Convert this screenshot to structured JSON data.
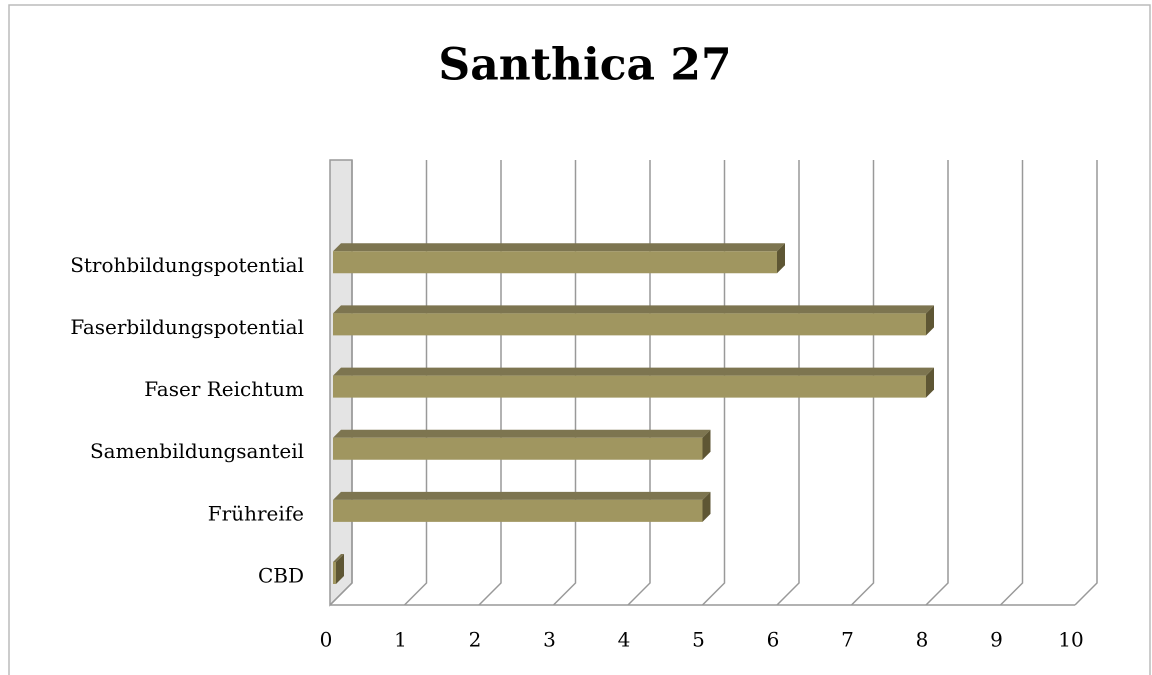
{
  "chart_data": {
    "type": "bar3d_horizontal",
    "title": "Santhica 27",
    "categories": [
      "CBD",
      "Frühreife",
      "Samenbildungsanteil",
      "Faser Reichtum",
      "Faserbildungspotential",
      "Strohbildungspotential",
      null
    ],
    "values": [
      0,
      5,
      5,
      8,
      8,
      6,
      null
    ],
    "color": "#a09660",
    "xlim": [
      0,
      10
    ],
    "xticks": [
      0,
      1,
      2,
      3,
      4,
      5,
      6,
      7,
      8,
      9,
      10
    ],
    "grid": true
  }
}
